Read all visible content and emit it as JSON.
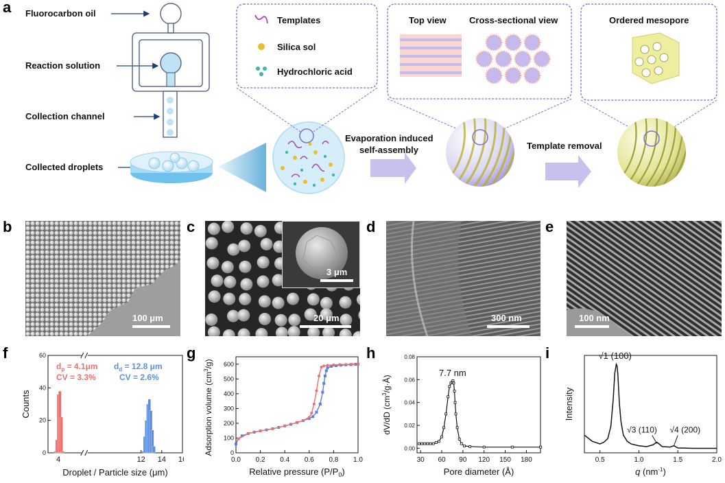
{
  "panel_labels": [
    "a",
    "b",
    "c",
    "d",
    "e",
    "f",
    "g",
    "h",
    "i"
  ],
  "schematic": {
    "device_labels": {
      "oil": "Fluorocarbon oil",
      "reaction": "Reaction solution",
      "channel": "Collection channel",
      "droplets": "Collected droplets"
    },
    "legend": {
      "templates": "Templates",
      "silica": "Silica sol",
      "hcl": "Hydrochloric acid"
    },
    "views": {
      "top": "Top view",
      "cross": "Cross-sectional view",
      "mesopore": "Ordered mesopore"
    },
    "steps": {
      "evap_line1": "Evaporation induced",
      "evap_line2": "self-assembly",
      "template_removal": "Template removal"
    },
    "colors": {
      "fluid_blue": "#bfe3f5",
      "purple_outline": "#7b6fd0",
      "arrow_purple": "#c8c0ee",
      "gold": "#e6c12a",
      "teal": "#3bb8a6",
      "yellow_sphere": "#e9ea9c"
    }
  },
  "micrographs": {
    "b": {
      "scale": "100 μm"
    },
    "c": {
      "scale": "20 μm",
      "inset_scale": "3 μm"
    },
    "d": {
      "scale": "300 nm"
    },
    "e": {
      "scale": "100 nm"
    }
  },
  "chart_data": [
    {
      "panel": "f",
      "type": "bar",
      "xlabel": "Droplet / Particle size (μm)",
      "ylabel": "Counts",
      "ylim": [
        0,
        60
      ],
      "yticks": [
        0,
        20,
        40,
        60
      ],
      "xticks": [
        4,
        12,
        14,
        16
      ],
      "axis_break": true,
      "annotations": {
        "dp": "d",
        "dp_sub": "p",
        "dp_val": " = 4.1μm",
        "cv_p": "CV = 3.3%",
        "dd": "d",
        "dd_sub": "d",
        "dd_val": " = 12.8 μm",
        "cv_d": "CV = 2.6%"
      },
      "series": [
        {
          "color": "#e8706f",
          "x": [
            3.7,
            3.85,
            4.0,
            4.15,
            4.3,
            4.45
          ],
          "values": [
            1,
            8,
            36,
            38,
            22,
            1
          ]
        },
        {
          "color": "#5b8fe0",
          "x": [
            12.2,
            12.35,
            12.5,
            12.65,
            12.8,
            12.95,
            13.1,
            13.25
          ],
          "values": [
            1,
            10,
            20,
            30,
            33,
            26,
            14,
            4
          ]
        }
      ]
    },
    {
      "panel": "g",
      "type": "line",
      "xlabel": "Relative pressure (P/P",
      "xlabel_sub": "0",
      "xlabel_end": ")",
      "ylabel": "Adsorption volume (cm",
      "ylabel_sup": "3",
      "ylabel_end": "/g)",
      "xlim": [
        0,
        1
      ],
      "ylim": [
        0,
        650
      ],
      "xticks": [
        0.0,
        0.2,
        0.4,
        0.6,
        0.8,
        1.0
      ],
      "yticks": [
        0,
        100,
        200,
        300,
        400,
        500,
        600
      ],
      "series": [
        {
          "color": "#5b7fe0",
          "x": [
            0.0,
            0.02,
            0.05,
            0.1,
            0.15,
            0.2,
            0.25,
            0.3,
            0.35,
            0.4,
            0.45,
            0.5,
            0.55,
            0.6,
            0.63,
            0.66,
            0.69,
            0.71,
            0.72,
            0.73,
            0.74,
            0.75,
            0.78,
            0.82,
            0.86,
            0.9,
            0.94,
            0.98,
            1.0
          ],
          "values": [
            60,
            95,
            115,
            130,
            140,
            148,
            155,
            163,
            172,
            182,
            193,
            205,
            218,
            232,
            245,
            275,
            330,
            410,
            470,
            520,
            555,
            575,
            585,
            590,
            593,
            595,
            597,
            599,
            600
          ]
        },
        {
          "color": "#e8706f",
          "x": [
            0.02,
            0.1,
            0.2,
            0.3,
            0.4,
            0.5,
            0.55,
            0.6,
            0.62,
            0.64,
            0.66,
            0.68,
            0.7,
            0.72,
            0.75,
            0.8,
            0.85,
            0.9,
            0.95,
            1.0
          ],
          "values": [
            95,
            130,
            148,
            163,
            182,
            205,
            218,
            240,
            270,
            330,
            420,
            520,
            580,
            588,
            592,
            595,
            597,
            598,
            599,
            600
          ]
        }
      ]
    },
    {
      "panel": "h",
      "type": "line",
      "xlabel": "Pore diameter (Å)",
      "ylabel": "dV/dD (cm",
      "ylabel_sup": "3",
      "ylabel_end": "/g·Å)",
      "annotation": "7.7 nm",
      "xlim": [
        25,
        200
      ],
      "ylim": [
        -0.004,
        0.08
      ],
      "xticks": [
        30,
        60,
        90,
        120,
        150,
        180
      ],
      "yticks": [
        0.0,
        0.02,
        0.04,
        0.06,
        0.08
      ],
      "series": [
        {
          "color": "#111111",
          "x": [
            28,
            32,
            36,
            40,
            44,
            48,
            52,
            56,
            60,
            63,
            66,
            69,
            71,
            73,
            75,
            76,
            77,
            78,
            79,
            80,
            82,
            85,
            88,
            92,
            100,
            120,
            160,
            200
          ],
          "values": [
            0.004,
            0.004,
            0.004,
            0.004,
            0.004,
            0.004,
            0.005,
            0.006,
            0.01,
            0.018,
            0.03,
            0.045,
            0.054,
            0.057,
            0.058,
            0.059,
            0.057,
            0.05,
            0.04,
            0.03,
            0.018,
            0.008,
            0.004,
            0.002,
            0.0015,
            0.001,
            0.001,
            0.001
          ]
        }
      ]
    },
    {
      "panel": "i",
      "type": "line",
      "xlabel_q": "q",
      "xlabel_rest": " (nm",
      "xlabel_sup": "-1",
      "xlabel_end": ")",
      "ylabel": "Intensity",
      "xlim": [
        0.3,
        2.0
      ],
      "xticks": [
        0.5,
        1.0,
        1.5,
        2.0
      ],
      "ylim": [
        0,
        1.1
      ],
      "peak_labels": {
        "p100": "√1 (100)",
        "p110": "√3 (110)",
        "p200": "√4 (200)"
      },
      "series": [
        {
          "color": "#111111",
          "x": [
            0.3,
            0.4,
            0.5,
            0.55,
            0.6,
            0.64,
            0.67,
            0.69,
            0.71,
            0.72,
            0.73,
            0.75,
            0.77,
            0.8,
            0.85,
            0.9,
            1.0,
            1.1,
            1.18,
            1.23,
            1.26,
            1.3,
            1.4,
            1.45,
            1.5,
            1.7,
            2.0
          ],
          "values": [
            0.2,
            0.13,
            0.1,
            0.12,
            0.16,
            0.3,
            0.6,
            0.9,
            1.0,
            0.98,
            0.88,
            0.55,
            0.35,
            0.2,
            0.13,
            0.1,
            0.08,
            0.07,
            0.09,
            0.12,
            0.1,
            0.07,
            0.065,
            0.08,
            0.055,
            0.05,
            0.05
          ]
        }
      ]
    }
  ]
}
